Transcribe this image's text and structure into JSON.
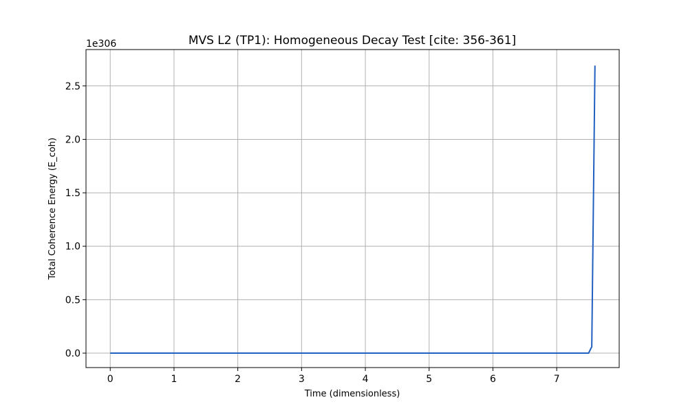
{
  "chart_data": {
    "type": "line",
    "title": "MVS L2 (TP1): Homogeneous Decay Test [cite: 356-361]",
    "xlabel": "Time (dimensionless)",
    "ylabel": "Total Coherence Energy (E_coh)",
    "y_offset_label": "1e306",
    "xlim": [
      -0.38,
      7.98
    ],
    "ylim": [
      -0.135,
      2.84
    ],
    "x_ticks": [
      0,
      1,
      2,
      3,
      4,
      5,
      6,
      7
    ],
    "x_tick_labels": [
      "0",
      "1",
      "2",
      "3",
      "4",
      "5",
      "6",
      "7"
    ],
    "y_ticks": [
      0.0,
      0.5,
      1.0,
      1.5,
      2.0,
      2.5
    ],
    "y_tick_labels": [
      "0.0",
      "0.5",
      "1.0",
      "1.5",
      "2.0",
      "2.5"
    ],
    "grid": true,
    "series": [
      {
        "color": "#1f5fbf",
        "x": [
          0,
          1,
          2,
          3,
          4,
          5,
          6,
          7,
          7.5,
          7.55,
          7.6
        ],
        "y": [
          0,
          0,
          0,
          0,
          0,
          0,
          0,
          0,
          0,
          0.06,
          2.69
        ]
      }
    ]
  }
}
